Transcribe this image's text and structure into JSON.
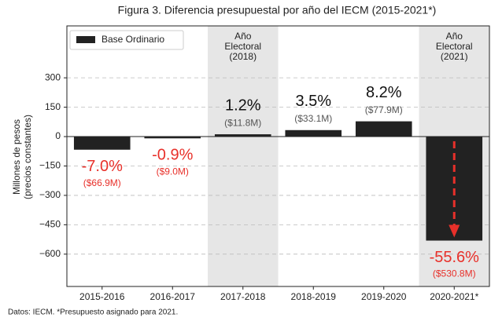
{
  "chart_data": {
    "type": "bar",
    "title": "Figura 3. Diferencia presupuestal por año del IECM (2015-2021*)",
    "y_label": [
      "Millones de pesos",
      "(precios constantes)"
    ],
    "footnote": "Datos: IECM. *Presupuesto asignado para 2021.",
    "legend": "Base Ordinario",
    "categories": [
      "2015-2016",
      "2016-2017",
      "2017-2018",
      "2018-2019",
      "2019-2020",
      "2020-2021*"
    ],
    "values": [
      -66.9,
      -9.0,
      11.8,
      33.1,
      77.9,
      -530.8
    ],
    "value_labels": [
      "($66.9M)",
      "($9.0M)",
      "($11.8M)",
      "($33.1M)",
      "($77.9M)",
      "($530.8M)"
    ],
    "percent": [
      -7.0,
      -0.9,
      1.2,
      3.5,
      8.2,
      -55.6
    ],
    "percent_labels": [
      "-7.0%",
      "-0.9%",
      "1.2%",
      "3.5%",
      "8.2%",
      "-55.6%"
    ],
    "color": "#222222",
    "negative_label_color": "#e8302a",
    "shaded": [
      {
        "category": "2017-2018",
        "label": [
          "Año",
          "Electoral",
          "(2018)"
        ]
      },
      {
        "category": "2020-2021*",
        "label": [
          "Año",
          "Electoral",
          "(2021)"
        ]
      }
    ],
    "ylim": [
      -765,
      565
    ],
    "yticks": [
      {
        "value": 300,
        "label": "300"
      },
      {
        "value": 150,
        "label": "150"
      },
      {
        "value": 0,
        "label": "0"
      },
      {
        "value": -150,
        "label": "−150"
      },
      {
        "value": -300,
        "label": "−300"
      },
      {
        "value": -450,
        "label": "−450"
      },
      {
        "value": -600,
        "label": "−600"
      }
    ],
    "grid": true
  }
}
